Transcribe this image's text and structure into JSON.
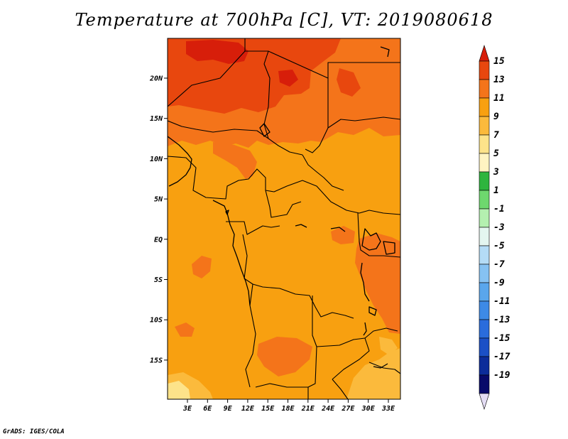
{
  "title": "Temperature at 700hPa [C], VT: 2019080618",
  "credit": "GrADS: IGES/COLA",
  "map": {
    "lon_labels": [
      "3E",
      "6E",
      "9E",
      "12E",
      "15E",
      "18E",
      "21E",
      "24E",
      "27E",
      "30E",
      "33E"
    ],
    "lat_labels": [
      "20N",
      "15N",
      "10N",
      "5N",
      "EQ",
      "5S",
      "10S",
      "15S"
    ]
  },
  "colors": {
    "c15": "#d71e0a",
    "c13": "#e8470e",
    "c11": "#f4741a",
    "c9": "#f8a010",
    "c7": "#fbba3c",
    "c5": "#fde38a",
    "c3": "#2eb53e",
    "c1": "#6ed86e",
    "cn1": "#b4f0b0",
    "cn3": "#e4f6f0",
    "cn5": "#b4dcf6",
    "cn7": "#86c2f2",
    "cn9": "#5aa6ec",
    "cn11": "#3d8ae6",
    "cn13": "#2a6cdc",
    "cn15": "#1b50c6",
    "cn17": "#0c2c9a",
    "cn19": "#080a6a",
    "low_tip": "#e4ddf4"
  },
  "legend": {
    "labels": [
      "15",
      "13",
      "11",
      "9",
      "7",
      "5",
      "3",
      "1",
      "-1",
      "-3",
      "-5",
      "-7",
      "-9",
      "-11",
      "-13",
      "-15",
      "-17",
      "-19"
    ],
    "fills": [
      "#e8470e",
      "#f4741a",
      "#f8a010",
      "#fbba3c",
      "#fde38a",
      "#fff4c2",
      "#2eb53e",
      "#6ed86e",
      "#b4f0b0",
      "#e4f6f0",
      "#b4dcf6",
      "#86c2f2",
      "#5aa6ec",
      "#3d8ae6",
      "#2a6cdc",
      "#1b50c6",
      "#0c2c9a",
      "#080a6a"
    ]
  }
}
